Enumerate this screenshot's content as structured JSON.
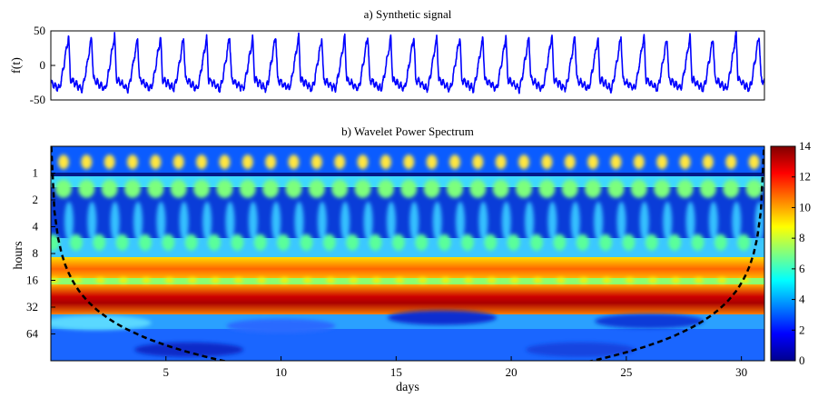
{
  "chart_data": [
    {
      "type": "line",
      "title": "a) Synthetic signal",
      "xlabel": "",
      "ylabel": "f(t)",
      "xlim": [
        0,
        31
      ],
      "ylim": [
        -50,
        50
      ],
      "yticks": [
        50,
        0,
        -50
      ],
      "grid": false,
      "line_color": "#0000ff",
      "series": [
        {
          "period_days": 1.0,
          "waveform": "sawtooth",
          "x": [
            0.0,
            0.5,
            1.0,
            1.5,
            2.0,
            2.5,
            3.0,
            3.5,
            4.0,
            4.5,
            5.0,
            5.5,
            6.0,
            6.5,
            7.0,
            7.5,
            8.0,
            8.5,
            9.0,
            9.5,
            10.0,
            10.5,
            11.0,
            11.5,
            12.0,
            12.5,
            13.0,
            13.5,
            14.0,
            14.5,
            15.0,
            15.5,
            16.0,
            16.5,
            17.0,
            17.5,
            18.0,
            18.5,
            19.0,
            19.5,
            20.0,
            20.5,
            21.0,
            21.5,
            22.0,
            22.5,
            23.0,
            23.5,
            24.0,
            24.5,
            25.0,
            25.5,
            26.0,
            26.5,
            27.0,
            27.5,
            28.0,
            28.5,
            29.0,
            29.5,
            30.0,
            30.5,
            31.0
          ],
          "y": [
            -5,
            42,
            -30,
            40,
            -35,
            44,
            -30,
            40,
            -35,
            42,
            -42,
            38,
            -30,
            40,
            -35,
            42,
            -30,
            40,
            -35,
            44,
            -30,
            42,
            -34,
            40,
            -31,
            42,
            -36,
            44,
            -30,
            40,
            -35,
            42,
            -30,
            41,
            -34,
            43,
            -30,
            40,
            -33,
            42,
            -30,
            41,
            -35,
            44,
            -30,
            42,
            -36,
            40,
            -30,
            42,
            -34,
            44,
            -30,
            40,
            -35,
            42,
            -30,
            41,
            -35,
            46,
            -35,
            44,
            -30
          ]
        }
      ]
    },
    {
      "type": "heatmap",
      "title": "b) Wavelet Power Spectrum",
      "xlabel": "days",
      "ylabel": "hours",
      "xlim": [
        0,
        31
      ],
      "xticks": [
        5,
        10,
        15,
        20,
        25,
        30
      ],
      "y_scale": "log2",
      "yticks": [
        1,
        2,
        4,
        8,
        16,
        32,
        64
      ],
      "ylim_hours": [
        0.5,
        128
      ],
      "y_direction": "reversed",
      "colormap": "jet",
      "colorbar": {
        "range": [
          0,
          14
        ],
        "ticks": [
          0,
          2,
          4,
          6,
          8,
          10,
          12,
          14
        ]
      },
      "bands": [
        {
          "period_hours": 1,
          "power": 6,
          "pattern": "daily-periodic"
        },
        {
          "period_hours": 2,
          "power": 3,
          "pattern": "daily-periodic"
        },
        {
          "period_hours": 4,
          "power": 4,
          "pattern": "daily-periodic"
        },
        {
          "period_hours": 12,
          "power": 10,
          "pattern": "continuous"
        },
        {
          "period_hours": 16,
          "power": 7,
          "pattern": "daily-periodic"
        },
        {
          "period_hours": 24,
          "power": 13.5,
          "pattern": "continuous"
        },
        {
          "period_hours": 64,
          "power": 2,
          "pattern": "broad"
        }
      ],
      "cone_of_influence": "dashed black"
    }
  ]
}
